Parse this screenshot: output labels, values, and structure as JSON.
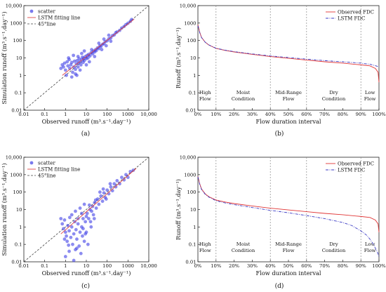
{
  "figure": {
    "panels": [
      {
        "label": "(a)"
      },
      {
        "label": "(b)"
      },
      {
        "label": "(c)"
      },
      {
        "label": "(d)"
      }
    ]
  },
  "colors": {
    "scatter": "#4040e6",
    "fit": "#e04848",
    "diag": "#444444",
    "observed": "#e03535",
    "lstm": "#3b3bc4",
    "grid": "#888888"
  },
  "chart_data": [
    {
      "panel": "(a)",
      "type": "scatter",
      "xlabel": "Observed runoff (m³.s⁻¹.day⁻¹)",
      "ylabel": "Simulation runoff (m³.s⁻¹.day⁻¹)",
      "xscale": "log",
      "yscale": "log",
      "xlim": [
        0.01,
        10000
      ],
      "ylim": [
        0.01,
        10000
      ],
      "xticks": [
        "0.01",
        "0.1",
        "1",
        "10",
        "100",
        "1000",
        "10,000"
      ],
      "yticks": [
        "0.01",
        "0.1",
        "1",
        "10",
        "100",
        "1000",
        "10,000"
      ],
      "legend": {
        "position": "top-left",
        "entries": [
          "scatter",
          "LSTM fitting line",
          "45°line"
        ]
      },
      "scatter_points": [
        [
          0.8,
          3.0
        ],
        [
          0.9,
          5.0
        ],
        [
          1.0,
          2.0
        ],
        [
          1.2,
          6.0
        ],
        [
          1.3,
          3.5
        ],
        [
          1.5,
          8.0
        ],
        [
          1.6,
          2.5
        ],
        [
          1.8,
          4.0
        ],
        [
          2.0,
          5.5
        ],
        [
          2.2,
          1.5
        ],
        [
          2.5,
          3.0
        ],
        [
          2.7,
          6.5
        ],
        [
          3.0,
          2.2
        ],
        [
          3.3,
          4.5
        ],
        [
          3.6,
          7.0
        ],
        [
          4.0,
          3.0
        ],
        [
          4.2,
          5.0
        ],
        [
          4.5,
          9.0
        ],
        [
          5.0,
          6.0
        ],
        [
          5.5,
          4.0
        ],
        [
          6.0,
          8.0
        ],
        [
          6.5,
          11.0
        ],
        [
          7.0,
          5.5
        ],
        [
          7.5,
          9.5
        ],
        [
          8.0,
          7.0
        ],
        [
          9.0,
          12.0
        ],
        [
          10.0,
          9.0
        ],
        [
          11.0,
          14.0
        ],
        [
          12.0,
          10.0
        ],
        [
          13.0,
          16.0
        ],
        [
          15.0,
          13.0
        ],
        [
          17.0,
          20.0
        ],
        [
          20.0,
          17.0
        ],
        [
          22.0,
          25.0
        ],
        [
          25.0,
          22.0
        ],
        [
          28.0,
          30.0
        ],
        [
          30.0,
          26.0
        ],
        [
          35.0,
          38.0
        ],
        [
          40.0,
          34.0
        ],
        [
          45.0,
          50.0
        ],
        [
          50.0,
          45.0
        ],
        [
          60.0,
          60.0
        ],
        [
          70.0,
          65.0
        ],
        [
          80.0,
          85.0
        ],
        [
          100.0,
          95.0
        ],
        [
          120.0,
          125.0
        ],
        [
          150.0,
          140.0
        ],
        [
          180.0,
          190.0
        ],
        [
          220.0,
          210.0
        ],
        [
          260.0,
          280.0
        ],
        [
          300.0,
          310.0
        ],
        [
          400.0,
          380.0
        ],
        [
          500.0,
          520.0
        ],
        [
          650.0,
          640.0
        ],
        [
          800.0,
          820.0
        ],
        [
          1000.0,
          980.0
        ],
        [
          1300.0,
          1250.0
        ],
        [
          1500.0,
          1600.0
        ],
        [
          1.1,
          1.0
        ],
        [
          2.0,
          0.8
        ],
        [
          3.0,
          1.2
        ],
        [
          5.0,
          2.0
        ],
        [
          6.0,
          18.0
        ],
        [
          8.0,
          25.0
        ],
        [
          4.0,
          12.0
        ],
        [
          10.0,
          4.0
        ],
        [
          14.0,
          6.0
        ],
        [
          18.0,
          30.0
        ],
        [
          25.0,
          12.0
        ],
        [
          40.0,
          70.0
        ],
        [
          55.0,
          30.0
        ],
        [
          70.0,
          120.0
        ],
        [
          90.0,
          50.0
        ],
        [
          120.0,
          200.0
        ],
        [
          150.0,
          90.0
        ],
        [
          0.7,
          4.0
        ],
        [
          0.6,
          2.5
        ],
        [
          1.4,
          10.0
        ],
        [
          2.4,
          14.0
        ],
        [
          3.5,
          1.0
        ]
      ],
      "fit_line": [
        [
          0.7,
          1.0
        ],
        [
          2000.0,
          1700.0
        ]
      ],
      "diagonal": [
        [
          0.01,
          0.01
        ],
        [
          10000,
          10000
        ]
      ]
    },
    {
      "panel": "(b)",
      "type": "line",
      "xlabel": "Flow duration interval",
      "ylabel": "Runoff (m³.s⁻¹.day⁻¹)",
      "yscale": "log",
      "xlim": [
        0,
        100
      ],
      "ylim": [
        0.01,
        10000
      ],
      "xticks": [
        "0%",
        "10%",
        "20%",
        "30%",
        "40%",
        "50%",
        "60%",
        "70%",
        "80%",
        "90%",
        "100%"
      ],
      "yticks": [
        "0.01",
        "0.1",
        "1",
        "10",
        "100",
        "1000",
        "10,000"
      ],
      "legend": {
        "position": "top-right",
        "entries": [
          "Observed FDC",
          "LSTM FDC"
        ]
      },
      "zone_boundaries": [
        10,
        40,
        60,
        90
      ],
      "zones": [
        {
          "name": "High Flow",
          "lines": [
            "High",
            "Flow"
          ],
          "center": 4
        },
        {
          "name": "Moist Condition",
          "lines": [
            "Moist",
            "Condition"
          ],
          "center": 25
        },
        {
          "name": "Mid-Range Flow",
          "lines": [
            "Mid-Range",
            "Flow"
          ],
          "center": 50
        },
        {
          "name": "Dry Condition",
          "lines": [
            "Dry",
            "Condition"
          ],
          "center": 75
        },
        {
          "name": "Low Flow",
          "lines": [
            "Low",
            "Flow"
          ],
          "center": 95
        }
      ],
      "series": [
        {
          "name": "Observed FDC",
          "x": [
            0,
            1,
            2,
            4,
            6,
            10,
            15,
            20,
            30,
            40,
            50,
            60,
            70,
            80,
            90,
            95,
            98,
            99.5,
            100
          ],
          "y": [
            800,
            300,
            150,
            80,
            55,
            35,
            27,
            22,
            16,
            12,
            9.5,
            7.5,
            6,
            5,
            4,
            3.5,
            2.5,
            1.5,
            0.4
          ]
        },
        {
          "name": "LSTM FDC",
          "x": [
            0,
            1,
            2,
            4,
            6,
            10,
            15,
            20,
            30,
            40,
            50,
            60,
            70,
            80,
            90,
            95,
            98,
            99.5,
            100
          ],
          "y": [
            700,
            280,
            145,
            80,
            56,
            36,
            28,
            23,
            17,
            13,
            10.5,
            8.5,
            7,
            6,
            5,
            4.3,
            3.6,
            3.2,
            3
          ]
        }
      ]
    },
    {
      "panel": "(c)",
      "type": "scatter",
      "xlabel": "Observed runoff (m³.s⁻¹.day⁻¹)",
      "ylabel": "Simulation runoff (m³.s⁻¹.day⁻¹)",
      "xscale": "log",
      "yscale": "log",
      "xlim": [
        0.01,
        10000
      ],
      "ylim": [
        0.01,
        10000
      ],
      "xticks": [
        "0.01",
        "0.1",
        "1",
        "10",
        "100",
        "1000",
        "10,000"
      ],
      "yticks": [
        "0.01",
        "0.1",
        "1",
        "10",
        "100",
        "1000",
        "10,000"
      ],
      "legend": {
        "position": "top-left",
        "entries": [
          "scatter",
          "LSTM fitting line",
          "45°line"
        ]
      },
      "scatter_points": [
        [
          0.6,
          3.0
        ],
        [
          0.7,
          1.5
        ],
        [
          0.8,
          0.8
        ],
        [
          0.9,
          2.5
        ],
        [
          1.0,
          0.5
        ],
        [
          1.1,
          0.3
        ],
        [
          1.2,
          0.15
        ],
        [
          1.3,
          1.2
        ],
        [
          1.5,
          0.6
        ],
        [
          1.6,
          3.5
        ],
        [
          1.8,
          0.25
        ],
        [
          2.0,
          1.0
        ],
        [
          2.2,
          0.1
        ],
        [
          2.5,
          0.4
        ],
        [
          2.8,
          2.0
        ],
        [
          3.0,
          0.05
        ],
        [
          3.2,
          0.7
        ],
        [
          3.5,
          0.2
        ],
        [
          4.0,
          1.5
        ],
        [
          4.5,
          0.08
        ],
        [
          5.0,
          0.5
        ],
        [
          5.5,
          0.03
        ],
        [
          6.0,
          1.0
        ],
        [
          6.5,
          0.3
        ],
        [
          7.0,
          3.0
        ],
        [
          8.0,
          0.15
        ],
        [
          9.0,
          2.0
        ],
        [
          10.0,
          0.5
        ],
        [
          11.0,
          6.0
        ],
        [
          12.0,
          0.1
        ],
        [
          13.0,
          3.0
        ],
        [
          15.0,
          10.0
        ],
        [
          17.0,
          1.0
        ],
        [
          20.0,
          15.0
        ],
        [
          22.0,
          5.0
        ],
        [
          25.0,
          25.0
        ],
        [
          30.0,
          12.0
        ],
        [
          35.0,
          40.0
        ],
        [
          40.0,
          20.0
        ],
        [
          50.0,
          60.0
        ],
        [
          60.0,
          30.0
        ],
        [
          70.0,
          90.0
        ],
        [
          80.0,
          50.0
        ],
        [
          100.0,
          130.0
        ],
        [
          120.0,
          80.0
        ],
        [
          150.0,
          200.0
        ],
        [
          180.0,
          120.0
        ],
        [
          220.0,
          300.0
        ],
        [
          260.0,
          200.0
        ],
        [
          300.0,
          450.0
        ],
        [
          400.0,
          300.0
        ],
        [
          500.0,
          700.0
        ],
        [
          650.0,
          500.0
        ],
        [
          800.0,
          1000.0
        ],
        [
          1000.0,
          700.0
        ],
        [
          1300.0,
          1500.0
        ],
        [
          1800.0,
          1800.0
        ],
        [
          2.0,
          5.0
        ],
        [
          3.0,
          8.0
        ],
        [
          5.0,
          12.0
        ],
        [
          8.0,
          20.0
        ],
        [
          4.0,
          3.0
        ],
        [
          6.0,
          6.0
        ],
        [
          10.0,
          4.0
        ],
        [
          14.0,
          18.0
        ],
        [
          18.0,
          8.0
        ],
        [
          28.0,
          35.0
        ],
        [
          45.0,
          100.0
        ],
        [
          65.0,
          150.0
        ],
        [
          90.0,
          40.0
        ],
        [
          140.0,
          300.0
        ],
        [
          1.0,
          0.02
        ],
        [
          1.5,
          0.04
        ],
        [
          2.5,
          0.012
        ],
        [
          3.5,
          0.06
        ],
        [
          0.9,
          0.2
        ],
        [
          1.4,
          0.09
        ],
        [
          7.0,
          0.8
        ],
        [
          9.0,
          0.4
        ],
        [
          16.0,
          2.0
        ],
        [
          24.0,
          3.0
        ]
      ],
      "fit_line": [
        [
          0.6,
          0.4
        ],
        [
          2500.0,
          2300.0
        ]
      ],
      "diagonal": [
        [
          0.01,
          0.01
        ],
        [
          10000,
          10000
        ]
      ]
    },
    {
      "panel": "(d)",
      "type": "line",
      "xlabel": "Flow duration interval",
      "ylabel": "Runoff (m³.s⁻¹.day⁻¹)",
      "yscale": "log",
      "xlim": [
        0,
        100
      ],
      "ylim": [
        0.01,
        10000
      ],
      "xticks": [
        "0%",
        "10%",
        "20%",
        "30%",
        "40%",
        "50%",
        "60%",
        "70%",
        "80%",
        "90%",
        "100%"
      ],
      "yticks": [
        "0.01",
        "0.1",
        "1",
        "10",
        "100",
        "1000",
        "10,000"
      ],
      "legend": {
        "position": "top-right",
        "entries": [
          "Observed FDC",
          "LSTM FDC"
        ]
      },
      "zone_boundaries": [
        10,
        40,
        60,
        90
      ],
      "zones": [
        {
          "name": "High Flow",
          "lines": [
            "High",
            "Flow"
          ],
          "center": 4
        },
        {
          "name": "Moist Condition",
          "lines": [
            "Moist",
            "Condition"
          ],
          "center": 25
        },
        {
          "name": "Mid-Range Flow",
          "lines": [
            "Mid-Range",
            "Flow"
          ],
          "center": 50
        },
        {
          "name": "Dry Condition",
          "lines": [
            "Dry",
            "Condition"
          ],
          "center": 75
        },
        {
          "name": "Low Flow",
          "lines": [
            "Low",
            "Flow"
          ],
          "center": 95
        }
      ],
      "series": [
        {
          "name": "Observed FDC",
          "x": [
            0,
            1,
            2,
            4,
            6,
            10,
            15,
            20,
            30,
            40,
            50,
            60,
            70,
            80,
            90,
            95,
            98,
            99.5,
            100
          ],
          "y": [
            800,
            300,
            150,
            80,
            55,
            35,
            27,
            22,
            16,
            12,
            9.5,
            7.5,
            6,
            5,
            4,
            3.5,
            2.5,
            1.5,
            0.5
          ]
        },
        {
          "name": "LSTM FDC",
          "x": [
            0,
            1,
            2,
            4,
            6,
            10,
            15,
            20,
            30,
            40,
            50,
            60,
            70,
            80,
            85,
            90,
            93,
            95,
            97,
            98,
            99,
            100
          ],
          "y": [
            750,
            280,
            140,
            75,
            52,
            32,
            24,
            19,
            13,
            9,
            6.5,
            4.5,
            3,
            1.8,
            1.2,
            0.6,
            0.35,
            0.2,
            0.1,
            0.06,
            0.04,
            0.02
          ]
        }
      ]
    }
  ]
}
